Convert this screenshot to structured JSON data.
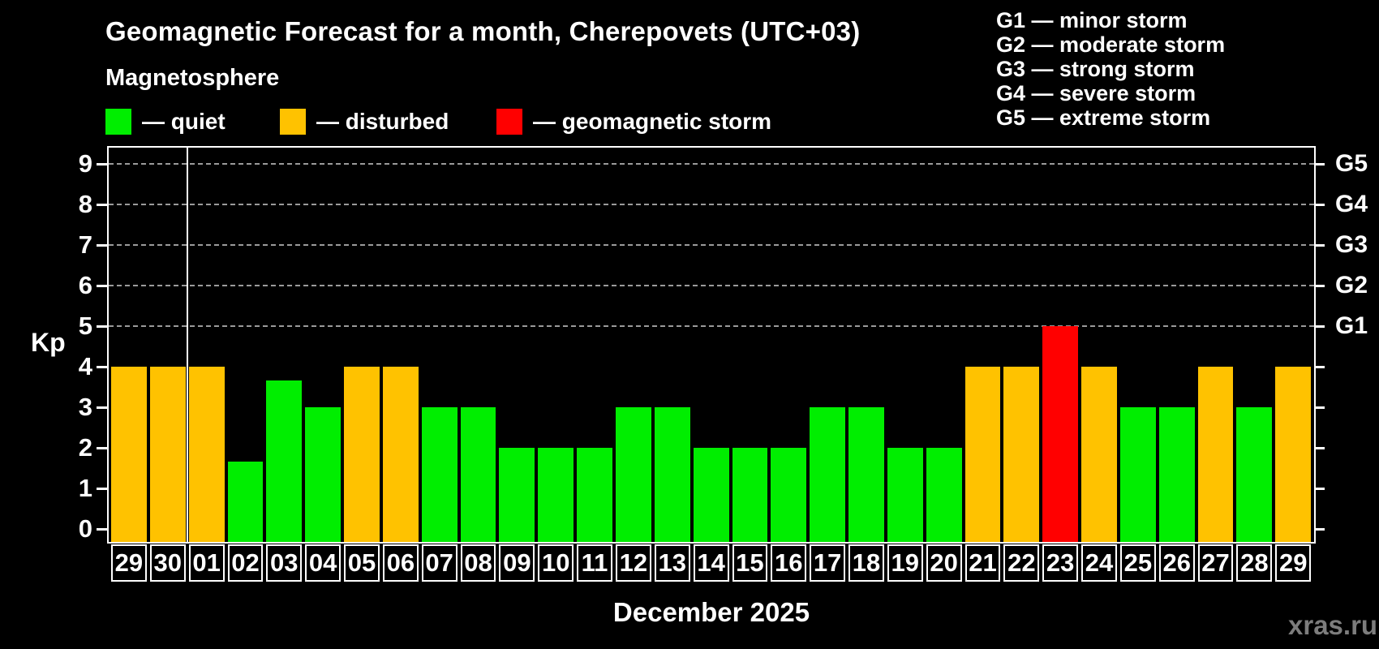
{
  "title": "Geomagnetic Forecast for a month, Cherepovets (UTC+03)",
  "subtitle": "Magnetosphere",
  "legend": {
    "quiet_label": "— quiet",
    "disturbed_label": "— disturbed",
    "storm_label": "— geomagnetic storm"
  },
  "g_legend": {
    "items": [
      "G1 — minor storm",
      "G2 — moderate storm",
      "G3 — strong storm",
      "G4 — severe storm",
      "G5 — extreme storm"
    ]
  },
  "axis": {
    "y_label": "Kp",
    "x_label": "December 2025",
    "y_ticks": [
      0,
      1,
      2,
      3,
      4,
      5,
      6,
      7,
      8,
      9
    ],
    "right_labels": [
      {
        "kp": 5,
        "label": "G1"
      },
      {
        "kp": 6,
        "label": "G2"
      },
      {
        "kp": 7,
        "label": "G3"
      },
      {
        "kp": 8,
        "label": "G4"
      },
      {
        "kp": 9,
        "label": "G5"
      }
    ]
  },
  "colors": {
    "quiet": "#00ee00",
    "disturbed": "#ffc200",
    "storm": "#ff0000",
    "grid": "#9a9a9a"
  },
  "watermark": "xras.ru",
  "chart_data": {
    "type": "bar",
    "title": "Geomagnetic Forecast for a month, Cherepovets (UTC+03)",
    "xlabel": "December 2025",
    "ylabel": "Kp",
    "ylim": [
      0,
      9.4
    ],
    "gridlines_at": [
      5,
      6,
      7,
      8,
      9
    ],
    "legend_position": "top",
    "month_boundary_after_index": 1,
    "categories": [
      "29",
      "30",
      "01",
      "02",
      "03",
      "04",
      "05",
      "06",
      "07",
      "08",
      "09",
      "10",
      "11",
      "12",
      "13",
      "14",
      "15",
      "16",
      "17",
      "18",
      "19",
      "20",
      "21",
      "22",
      "23",
      "24",
      "25",
      "26",
      "27",
      "28",
      "29"
    ],
    "values": [
      4,
      4,
      4,
      1.67,
      3.67,
      3,
      4,
      4,
      3,
      3,
      2,
      2,
      2,
      3,
      3,
      2,
      2,
      2,
      3,
      3,
      2,
      2,
      4,
      4,
      5,
      4,
      3,
      3,
      4,
      3,
      4
    ],
    "statuses": [
      "disturbed",
      "disturbed",
      "disturbed",
      "quiet",
      "quiet",
      "quiet",
      "disturbed",
      "disturbed",
      "quiet",
      "quiet",
      "quiet",
      "quiet",
      "quiet",
      "quiet",
      "quiet",
      "quiet",
      "quiet",
      "quiet",
      "quiet",
      "quiet",
      "quiet",
      "quiet",
      "disturbed",
      "disturbed",
      "storm",
      "disturbed",
      "quiet",
      "quiet",
      "disturbed",
      "quiet",
      "disturbed"
    ]
  }
}
